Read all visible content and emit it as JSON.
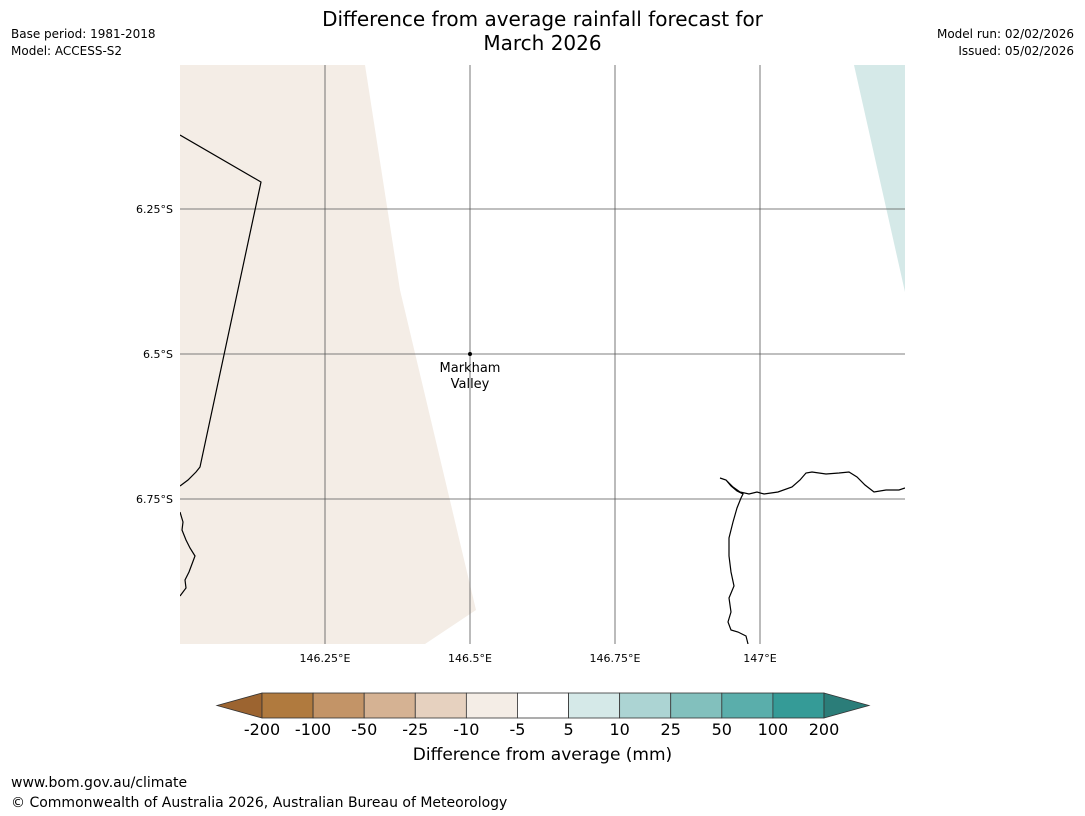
{
  "title": {
    "line1": "Difference from average rainfall forecast for",
    "line2": "March 2026"
  },
  "meta_left": {
    "base_period": "Base period: 1981-2018",
    "model": "Model: ACCESS-S2"
  },
  "meta_right": {
    "model_run": "Model run: 02/02/2026",
    "issued": "Issued: 05/02/2026"
  },
  "map": {
    "lat_labels": [
      "6.25°S",
      "6.5°S",
      "6.75°S"
    ],
    "lon_labels": [
      "146.25°E",
      "146.5°E",
      "146.75°E",
      "147°E"
    ],
    "place": {
      "name_line1": "Markham",
      "name_line2": "Valley"
    },
    "colors": {
      "dry_light": "#f4ede6",
      "wet_light": "#d5e9e8",
      "coastline": "#000000",
      "grid": "#555555"
    }
  },
  "colorbar": {
    "title": "Difference from average (mm)",
    "ticks": [
      "-200",
      "-100",
      "-50",
      "-25",
      "-10",
      "-5",
      "5",
      "10",
      "25",
      "50",
      "100",
      "200"
    ],
    "colors": [
      "#9c6430",
      "#b07a3e",
      "#c39467",
      "#d5b293",
      "#e6d1bf",
      "#f4ede6",
      "#ffffff",
      "#d5e9e8",
      "#acd4d3",
      "#82c0bd",
      "#5aaeab",
      "#359b97",
      "#2b7d79"
    ]
  },
  "footer": {
    "url": "www.bom.gov.au/climate",
    "copyright": "© Commonwealth of Australia 2026, Australian Bureau of Meteorology"
  }
}
